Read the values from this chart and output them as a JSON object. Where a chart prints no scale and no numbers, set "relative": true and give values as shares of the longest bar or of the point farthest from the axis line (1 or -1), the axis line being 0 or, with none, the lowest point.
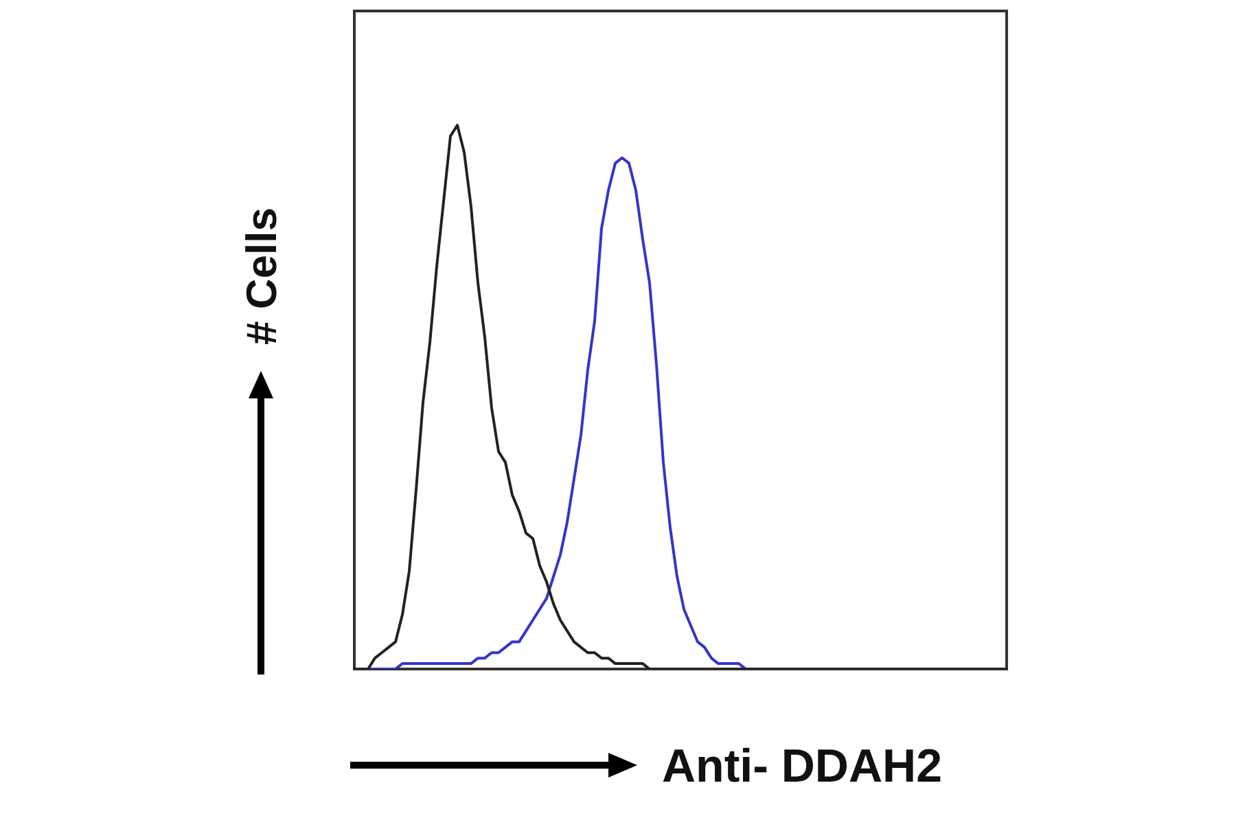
{
  "chart_data": {
    "type": "line",
    "xlabel": "Anti- DDAH2",
    "ylabel": "# Cells",
    "relative": true,
    "categories": [
      null,
      null,
      null,
      null,
      null,
      null,
      null,
      null,
      null,
      null,
      null,
      null,
      null,
      null,
      null,
      null,
      null,
      null,
      null,
      null,
      null,
      null,
      null,
      null,
      null,
      null,
      null,
      null,
      null,
      null,
      null,
      null,
      null,
      null,
      null,
      null,
      null,
      null,
      null,
      null,
      null,
      null,
      null,
      null,
      null,
      null,
      null,
      null,
      null,
      null,
      null,
      null,
      null,
      null,
      null,
      null,
      null,
      null,
      null,
      null,
      null,
      null,
      null,
      null,
      null,
      null,
      null,
      null,
      null,
      null,
      null,
      null,
      null,
      null,
      null,
      null,
      null,
      null,
      null,
      null,
      null,
      null,
      null,
      null,
      null,
      null,
      null,
      null,
      null,
      null,
      null,
      null,
      null,
      null,
      null,
      null
    ],
    "series": [
      {
        "color": "#222222",
        "values": [
          0,
          0,
          0,
          0.02,
          0.03,
          0.04,
          0.05,
          0.1,
          0.18,
          0.33,
          0.49,
          0.6,
          0.74,
          0.86,
          0.98,
          1,
          0.95,
          0.85,
          0.71,
          0.61,
          0.48,
          0.4,
          0.38,
          0.32,
          0.29,
          0.25,
          0.24,
          0.19,
          0.16,
          0.12,
          0.09,
          0.07,
          0.05,
          0.04,
          0.03,
          0.03,
          0.02,
          0.02,
          0.01,
          0.01,
          0.01,
          0.01,
          0.01,
          0,
          0,
          0,
          0,
          0,
          0,
          0,
          0,
          0,
          0,
          0,
          0,
          0,
          0,
          0,
          0,
          0,
          0,
          0,
          0,
          0,
          0,
          0,
          0,
          0,
          0,
          0,
          0,
          0,
          0,
          0,
          0,
          0,
          0,
          0,
          0,
          0,
          0,
          0,
          0,
          0,
          0,
          0,
          0,
          0,
          0,
          0,
          0,
          0,
          0,
          0,
          0,
          0
        ]
      },
      {
        "color": "#3535c8",
        "values": [
          0,
          0,
          0,
          0,
          0,
          0,
          0,
          0.01,
          0.01,
          0.01,
          0.01,
          0.01,
          0.01,
          0.01,
          0.01,
          0.01,
          0.01,
          0.01,
          0.02,
          0.02,
          0.03,
          0.03,
          0.04,
          0.05,
          0.05,
          0.07,
          0.09,
          0.11,
          0.13,
          0.17,
          0.21,
          0.27,
          0.35,
          0.43,
          0.55,
          0.64,
          0.81,
          0.88,
          0.93,
          0.94,
          0.93,
          0.88,
          0.79,
          0.71,
          0.56,
          0.38,
          0.26,
          0.17,
          0.11,
          0.08,
          0.05,
          0.04,
          0.02,
          0.01,
          0.01,
          0.01,
          0.01,
          0,
          0,
          0,
          null,
          null,
          null,
          null,
          null,
          null,
          null,
          null,
          null,
          null,
          null,
          null,
          null,
          null,
          null,
          null,
          null,
          null,
          null,
          null,
          null,
          null,
          null,
          null,
          null,
          null,
          null,
          null,
          null,
          null,
          null,
          null,
          null,
          null,
          null,
          null
        ]
      }
    ],
    "marker": "none",
    "legend": false,
    "grid": false,
    "tick_labels": false
  }
}
